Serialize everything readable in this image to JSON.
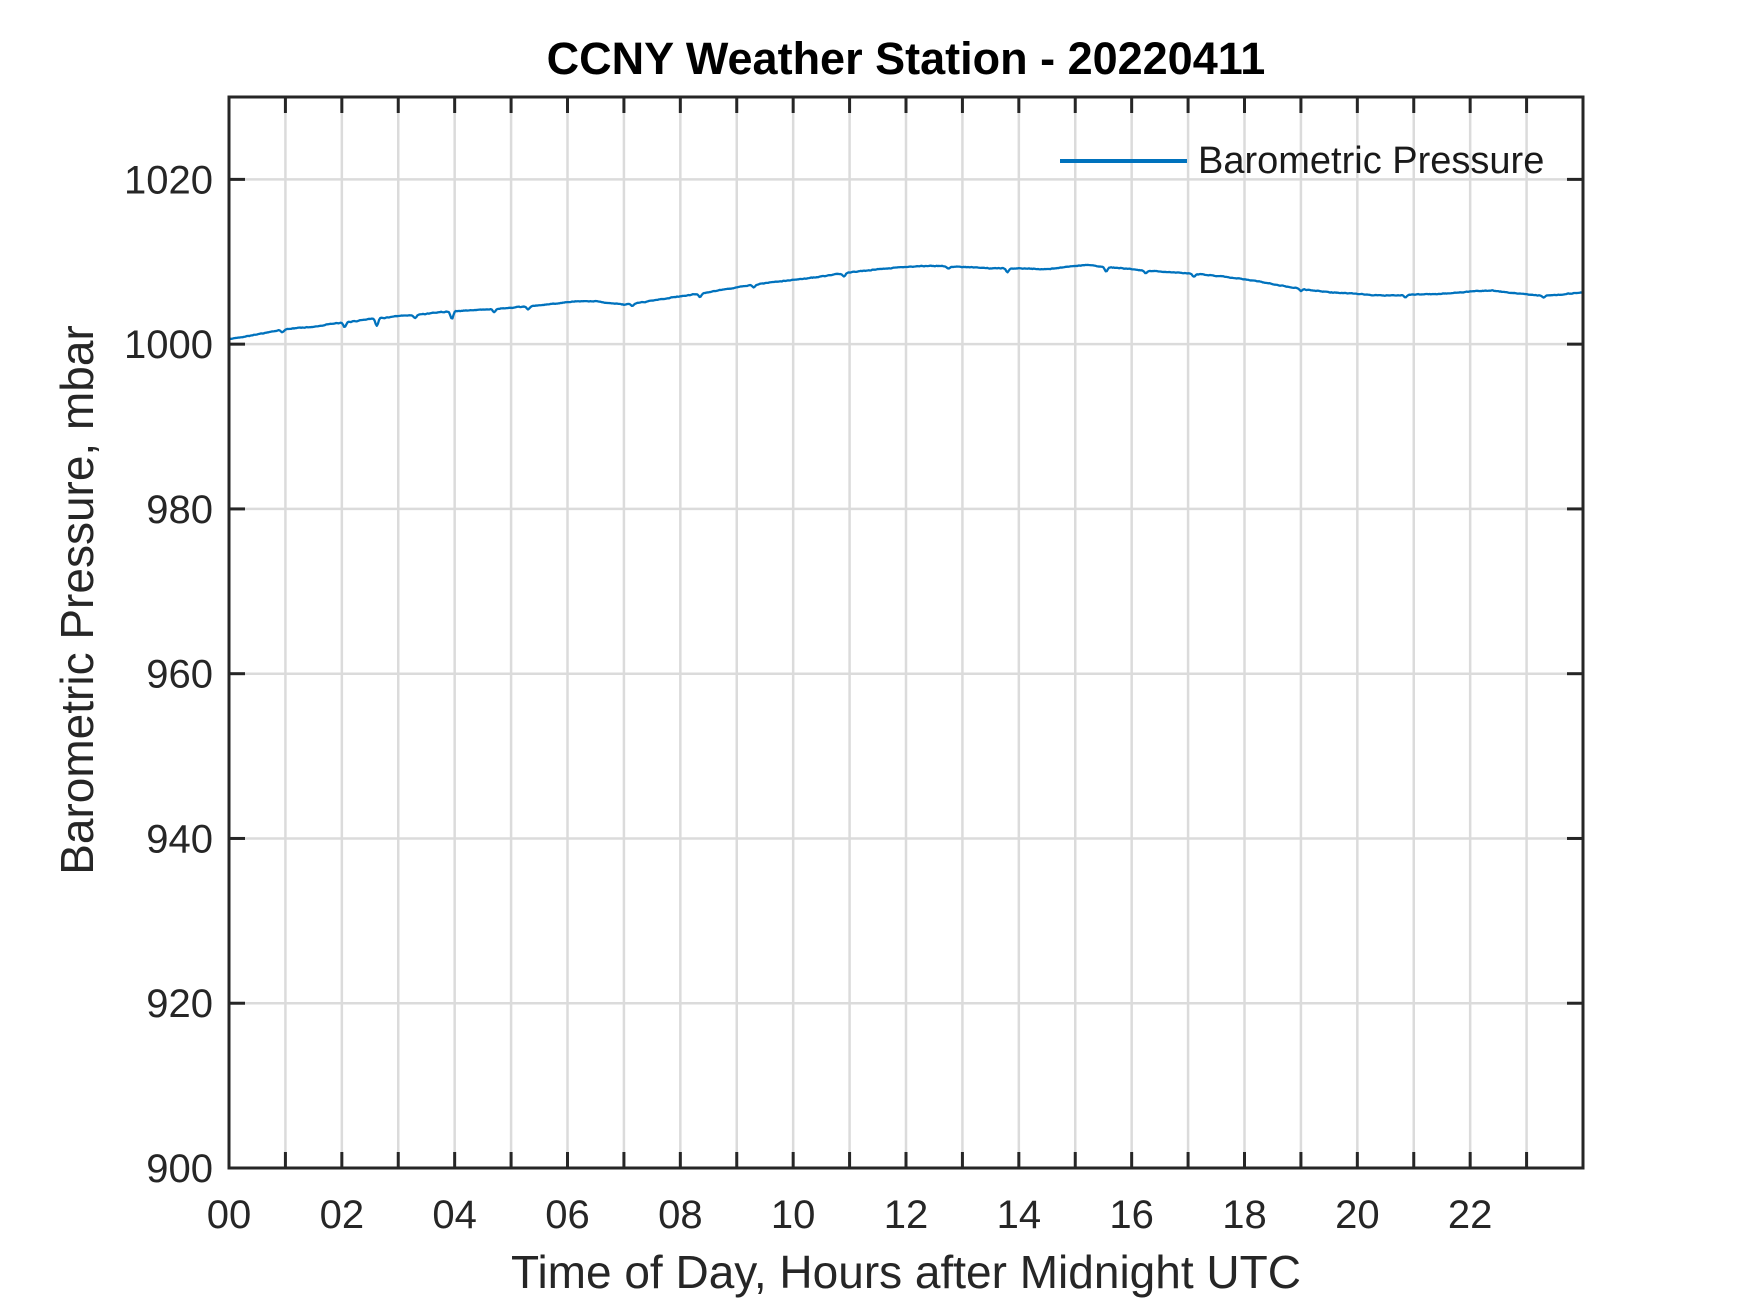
{
  "figure": {
    "background": "#ffffff",
    "title": "CCNY Weather Station - 20220411"
  },
  "chart_data": {
    "type": "line",
    "title": "CCNY Weather Station - 20220411",
    "xlabel": "Time of Day, Hours after Midnight UTC",
    "ylabel": "Barometric Pressure, mbar",
    "legend": {
      "position": "top-right",
      "box": false,
      "entries": [
        {
          "label": "Barometric Pressure",
          "color": "#0072BD"
        }
      ]
    },
    "xlim": [
      0,
      24
    ],
    "ylim": [
      900,
      1030
    ],
    "grid": true,
    "x_minor_tick_step_hours": 1,
    "xtick_label_values": [
      0,
      2,
      4,
      6,
      8,
      10,
      12,
      14,
      16,
      18,
      20,
      22
    ],
    "xtick_labels": [
      "00",
      "02",
      "04",
      "06",
      "08",
      "10",
      "12",
      "14",
      "16",
      "18",
      "20",
      "22"
    ],
    "yticks": [
      900,
      920,
      940,
      960,
      980,
      1000,
      1020
    ],
    "ytick_labels": [
      "900",
      "920",
      "940",
      "960",
      "980",
      "1000",
      "1020"
    ],
    "series": [
      {
        "name": "Barometric Pressure",
        "color": "#0072BD",
        "units": "mbar",
        "x_units": "hours after midnight UTC",
        "x": [
          0,
          0.25,
          0.5,
          0.75,
          1,
          1.25,
          1.5,
          1.75,
          2,
          2.25,
          2.5,
          2.75,
          3,
          3.25,
          3.5,
          3.75,
          4,
          4.5,
          5,
          5.5,
          6,
          6.25,
          6.5,
          6.75,
          7,
          7.25,
          7.5,
          8,
          8.5,
          9,
          9.5,
          10,
          10.5,
          11,
          11.5,
          12,
          12.5,
          13,
          13.5,
          14,
          14.5,
          15,
          15.25,
          15.5,
          16,
          16.5,
          17,
          17.5,
          18,
          18.5,
          19,
          19.5,
          20,
          20.5,
          21,
          21.5,
          22,
          22.4,
          22.8,
          23.2,
          23.6,
          24
        ],
        "y": [
          1000.6,
          1000.9,
          1001.2,
          1001.5,
          1001.8,
          1002.0,
          1002.1,
          1002.4,
          1002.6,
          1002.8,
          1003.1,
          1003.2,
          1003.4,
          1003.5,
          1003.7,
          1003.9,
          1004.0,
          1004.2,
          1004.4,
          1004.7,
          1005.1,
          1005.2,
          1005.2,
          1005.0,
          1004.8,
          1005.0,
          1005.3,
          1005.8,
          1006.3,
          1006.9,
          1007.4,
          1007.8,
          1008.2,
          1008.7,
          1009.1,
          1009.4,
          1009.5,
          1009.4,
          1009.2,
          1009.2,
          1009.1,
          1009.5,
          1009.6,
          1009.4,
          1009.1,
          1008.8,
          1008.6,
          1008.3,
          1007.9,
          1007.3,
          1006.7,
          1006.3,
          1006.1,
          1005.9,
          1006.0,
          1006.1,
          1006.4,
          1006.5,
          1006.2,
          1005.9,
          1006.0,
          1006.3
        ]
      }
    ],
    "noise_amplitude_mbar": 0.1,
    "downward_spikes": [
      {
        "h": 0.95,
        "d": 0.3
      },
      {
        "h": 2.05,
        "d": 0.6
      },
      {
        "h": 2.62,
        "d": 0.9
      },
      {
        "h": 3.3,
        "d": 0.4
      },
      {
        "h": 3.95,
        "d": 0.9
      },
      {
        "h": 4.7,
        "d": 0.4
      },
      {
        "h": 5.3,
        "d": 0.35
      },
      {
        "h": 7.15,
        "d": 0.3
      },
      {
        "h": 8.35,
        "d": 0.45
      },
      {
        "h": 9.3,
        "d": 0.3
      },
      {
        "h": 10.9,
        "d": 0.35
      },
      {
        "h": 12.75,
        "d": 0.3
      },
      {
        "h": 13.8,
        "d": 0.45
      },
      {
        "h": 15.55,
        "d": 0.55
      },
      {
        "h": 16.25,
        "d": 0.35
      },
      {
        "h": 17.1,
        "d": 0.35
      },
      {
        "h": 19.0,
        "d": 0.25
      },
      {
        "h": 20.85,
        "d": 0.3
      },
      {
        "h": 23.3,
        "d": 0.25
      }
    ],
    "colors": {
      "line": "#0072BD",
      "axis": "#262626",
      "grid": "#DBDBDB",
      "title_text": "#000000",
      "label_text": "#262626"
    }
  }
}
